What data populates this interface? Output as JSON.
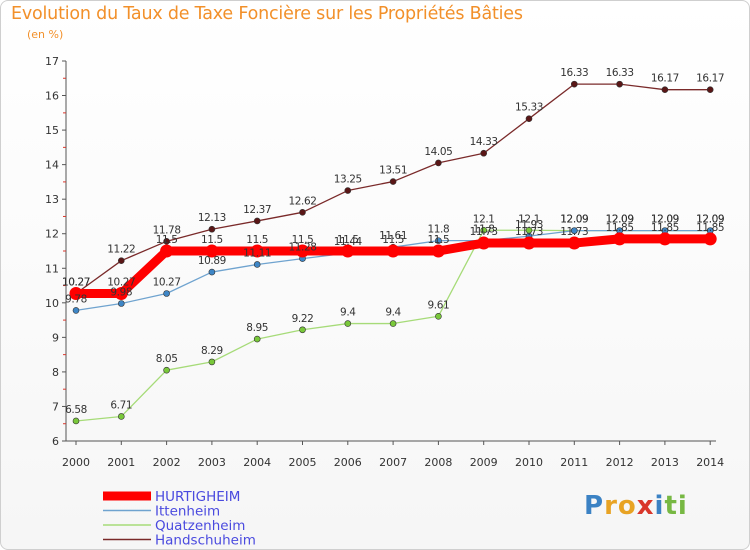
{
  "chart_data": {
    "type": "line",
    "title": "Evolution du Taux de Taxe Foncière sur les Propriétés Bâties",
    "subtitle": "(en %)",
    "xlabel": "",
    "ylabel": "",
    "ylim": [
      6,
      17
    ],
    "yticks": [
      6,
      7,
      8,
      9,
      10,
      11,
      12,
      13,
      14,
      15,
      16,
      17
    ],
    "x": [
      "2000",
      "2001",
      "2002",
      "2003",
      "2004",
      "2005",
      "2006",
      "2007",
      "2008",
      "2009",
      "2010",
      "2011",
      "2012",
      "2013",
      "2014"
    ],
    "grid": false,
    "legend_position": "bottom-left",
    "series": [
      {
        "name": "Handschuheim",
        "color": "#7a2a2a",
        "dot": "#5a1616",
        "values": [
          10.27,
          11.22,
          11.78,
          12.13,
          12.37,
          12.62,
          13.25,
          13.51,
          14.05,
          14.33,
          15.33,
          16.33,
          16.33,
          16.17,
          16.17
        ],
        "labels": [
          "10.27",
          "11.22",
          "11.78",
          "12.13",
          "12.37",
          "12.62",
          "13.25",
          "13.51",
          "14.05",
          "14.33",
          "15.33",
          "16.33",
          "16.33",
          "16.17",
          "16.17"
        ]
      },
      {
        "name": "Quatzenheim",
        "color": "#a6db78",
        "dot": "#79c83a",
        "values": [
          6.58,
          6.71,
          8.05,
          8.29,
          8.95,
          9.22,
          9.4,
          9.4,
          9.61,
          12.1,
          12.1,
          12.09,
          12.09,
          12.09,
          12.09
        ],
        "labels": [
          "6.58",
          "6.71",
          "8.05",
          "8.29",
          "8.95",
          "9.22",
          "9.4",
          "9.4",
          "9.61",
          "12.1",
          "12.1",
          "12.09",
          "12.09",
          "12.09",
          "12.09"
        ]
      },
      {
        "name": "Ittenheim",
        "color": "#6fa3cf",
        "dot": "#3e86c6",
        "values": [
          9.78,
          9.98,
          10.27,
          10.89,
          11.11,
          11.28,
          11.44,
          11.61,
          11.8,
          11.8,
          11.93,
          12.09,
          12.09,
          12.09,
          12.09
        ],
        "labels": [
          "9.78",
          "9.98",
          "10.27",
          "10.89",
          "11.11",
          "11.28",
          "11.44",
          "11.61",
          "11.8",
          "11.8",
          "11.93",
          "12.09",
          "12.09",
          "12.09",
          "12.09"
        ]
      },
      {
        "name": "HURTIGHEIM",
        "color": "#ff0000",
        "dot": "#ff0000",
        "values": [
          10.27,
          10.27,
          11.5,
          11.5,
          11.5,
          11.5,
          11.5,
          11.5,
          11.5,
          11.73,
          11.73,
          11.73,
          11.85,
          11.85,
          11.85
        ],
        "labels": [
          "10.27",
          "10.27",
          "11.5",
          "11.5",
          "11.5",
          "11.5",
          "11.5",
          "11.5",
          "11.5",
          "11.73",
          "11.73",
          "11.73",
          "11.85",
          "11.85",
          "11.85"
        ]
      }
    ],
    "legend": [
      "HURTIGHEIM",
      "Ittenheim",
      "Quatzenheim",
      "Handschuheim"
    ]
  },
  "logo": {
    "letters": [
      "P",
      "r",
      "o",
      "x",
      "i",
      "t",
      "i"
    ],
    "colors": [
      "#3b82c4",
      "#e8a324",
      "#e8a324",
      "#d9362b",
      "#3b82c4",
      "#77b843",
      "#77b843"
    ]
  }
}
